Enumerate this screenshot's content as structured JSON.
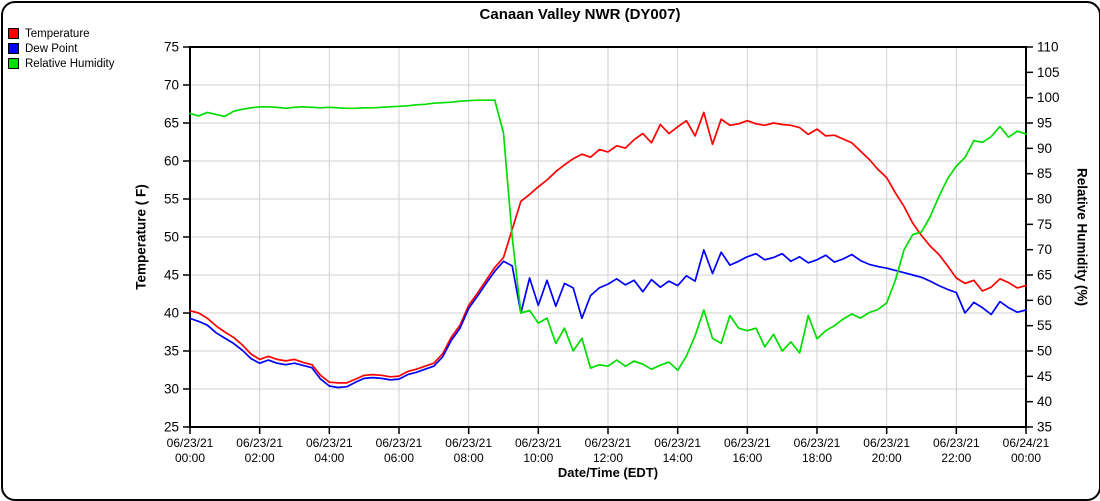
{
  "title": "Canaan Valley NWR (DY007)",
  "legend": {
    "items": [
      {
        "label": "Temperature",
        "color": "#ff0000"
      },
      {
        "label": "Dew Point",
        "color": "#0000ff"
      },
      {
        "label": "Relative Humidity",
        "color": "#00dd00"
      }
    ]
  },
  "colors": {
    "grid": "#d0d0d0",
    "axis": "#000000",
    "background": "#ffffff"
  },
  "chart_data": {
    "type": "line",
    "title": "Canaan Valley NWR (DY007)",
    "xlabel": "Date/Time (EDT)",
    "x_start_hours": 0,
    "x_end_hours": 24,
    "x_step_hours": 0.25,
    "grid": true,
    "legend_position": "top-left",
    "left_axis": {
      "label": "Temperature ( F)",
      "min": 25,
      "max": 75,
      "ticks": [
        25,
        30,
        35,
        40,
        45,
        50,
        55,
        60,
        65,
        70,
        75
      ]
    },
    "right_axis": {
      "label": "Relative Humidity (%)",
      "min": 35,
      "max": 110,
      "ticks": [
        35,
        40,
        45,
        50,
        55,
        60,
        65,
        70,
        75,
        80,
        85,
        90,
        95,
        100,
        105,
        110
      ]
    },
    "x_axis": {
      "label": "Date/Time (EDT)",
      "tick_hours": [
        0,
        2,
        4,
        6,
        8,
        10,
        12,
        14,
        16,
        18,
        20,
        22,
        24
      ],
      "tick_labels": [
        {
          "date": "06/23/21",
          "time": "00:00"
        },
        {
          "date": "06/23/21",
          "time": "02:00"
        },
        {
          "date": "06/23/21",
          "time": "04:00"
        },
        {
          "date": "06/23/21",
          "time": "06:00"
        },
        {
          "date": "06/23/21",
          "time": "08:00"
        },
        {
          "date": "06/23/21",
          "time": "10:00"
        },
        {
          "date": "06/23/21",
          "time": "12:00"
        },
        {
          "date": "06/23/21",
          "time": "14:00"
        },
        {
          "date": "06/23/21",
          "time": "16:00"
        },
        {
          "date": "06/23/21",
          "time": "18:00"
        },
        {
          "date": "06/23/21",
          "time": "20:00"
        },
        {
          "date": "06/23/21",
          "time": "22:00"
        },
        {
          "date": "06/24/21",
          "time": "00:00"
        }
      ]
    },
    "series": [
      {
        "name": "Temperature",
        "axis": "left",
        "color": "#ff0000",
        "values": [
          40.3,
          40.0,
          39.3,
          38.3,
          37.5,
          36.8,
          35.8,
          34.6,
          33.9,
          34.3,
          33.9,
          33.7,
          33.9,
          33.5,
          33.2,
          31.8,
          30.9,
          30.8,
          30.8,
          31.3,
          31.8,
          31.9,
          31.8,
          31.6,
          31.7,
          32.3,
          32.6,
          33.0,
          33.4,
          34.6,
          36.8,
          38.4,
          41.0,
          42.6,
          44.3,
          46.0,
          47.3,
          51.0,
          54.7,
          55.6,
          56.6,
          57.5,
          58.6,
          59.5,
          60.3,
          60.9,
          60.5,
          61.5,
          61.2,
          62.0,
          61.7,
          62.8,
          63.6,
          62.4,
          64.8,
          63.6,
          64.5,
          65.3,
          63.3,
          66.4,
          62.2,
          65.5,
          64.7,
          64.9,
          65.3,
          64.9,
          64.7,
          65.0,
          64.8,
          64.7,
          64.4,
          63.5,
          64.2,
          63.3,
          63.4,
          62.9,
          62.4,
          61.3,
          60.2,
          58.9,
          57.8,
          55.8,
          54.0,
          51.8,
          50.2,
          48.8,
          47.7,
          46.2,
          44.6,
          43.9,
          44.3,
          42.9,
          43.4,
          44.5,
          44.0,
          43.3,
          43.6
        ]
      },
      {
        "name": "Dew Point",
        "axis": "left",
        "color": "#0000ff",
        "values": [
          39.3,
          38.9,
          38.4,
          37.4,
          36.7,
          36.0,
          35.1,
          34.0,
          33.4,
          33.8,
          33.4,
          33.2,
          33.4,
          33.1,
          32.8,
          31.3,
          30.4,
          30.2,
          30.3,
          30.9,
          31.4,
          31.5,
          31.4,
          31.2,
          31.3,
          31.9,
          32.2,
          32.6,
          33.0,
          34.2,
          36.4,
          38.0,
          40.6,
          42.2,
          43.9,
          45.5,
          46.8,
          46.2,
          40.0,
          44.6,
          41.0,
          44.3,
          40.9,
          43.9,
          43.3,
          39.3,
          42.3,
          43.3,
          43.8,
          44.5,
          43.7,
          44.3,
          42.8,
          44.4,
          43.4,
          44.2,
          43.6,
          44.9,
          44.2,
          48.3,
          45.2,
          48.0,
          46.3,
          46.8,
          47.4,
          47.8,
          47.0,
          47.3,
          47.8,
          46.8,
          47.4,
          46.6,
          47.0,
          47.6,
          46.7,
          47.1,
          47.7,
          46.9,
          46.4,
          46.1,
          45.9,
          45.6,
          45.3,
          45.0,
          44.7,
          44.2,
          43.6,
          43.1,
          42.7,
          40.0,
          41.4,
          40.7,
          39.8,
          41.5,
          40.7,
          40.1,
          40.4
        ]
      },
      {
        "name": "Relative Humidity",
        "axis": "right",
        "color": "#00dd00",
        "values": [
          96.9,
          96.4,
          97.1,
          96.7,
          96.3,
          97.3,
          97.7,
          98.0,
          98.2,
          98.2,
          98.1,
          97.9,
          98.1,
          98.2,
          98.1,
          98.0,
          98.1,
          98.0,
          97.9,
          97.9,
          98.0,
          98.0,
          98.1,
          98.2,
          98.3,
          98.4,
          98.6,
          98.7,
          98.9,
          99.0,
          99.1,
          99.3,
          99.4,
          99.5,
          99.5,
          99.5,
          93.0,
          72.5,
          57.5,
          58.0,
          55.5,
          56.5,
          51.5,
          54.5,
          50.0,
          52.5,
          46.6,
          47.3,
          47.0,
          48.2,
          47.0,
          48.0,
          47.4,
          46.4,
          47.2,
          47.8,
          46.2,
          49.0,
          53.0,
          58.1,
          52.5,
          51.5,
          57.0,
          54.5,
          54.0,
          54.5,
          50.8,
          53.3,
          50.0,
          51.8,
          49.6,
          57.0,
          52.4,
          54.0,
          55.0,
          56.3,
          57.3,
          56.5,
          57.6,
          58.2,
          59.5,
          64.0,
          70.0,
          73.0,
          73.5,
          76.5,
          80.5,
          84.0,
          86.5,
          88.2,
          91.5,
          91.2,
          92.3,
          94.3,
          92.2,
          93.4,
          92.8
        ]
      }
    ]
  }
}
